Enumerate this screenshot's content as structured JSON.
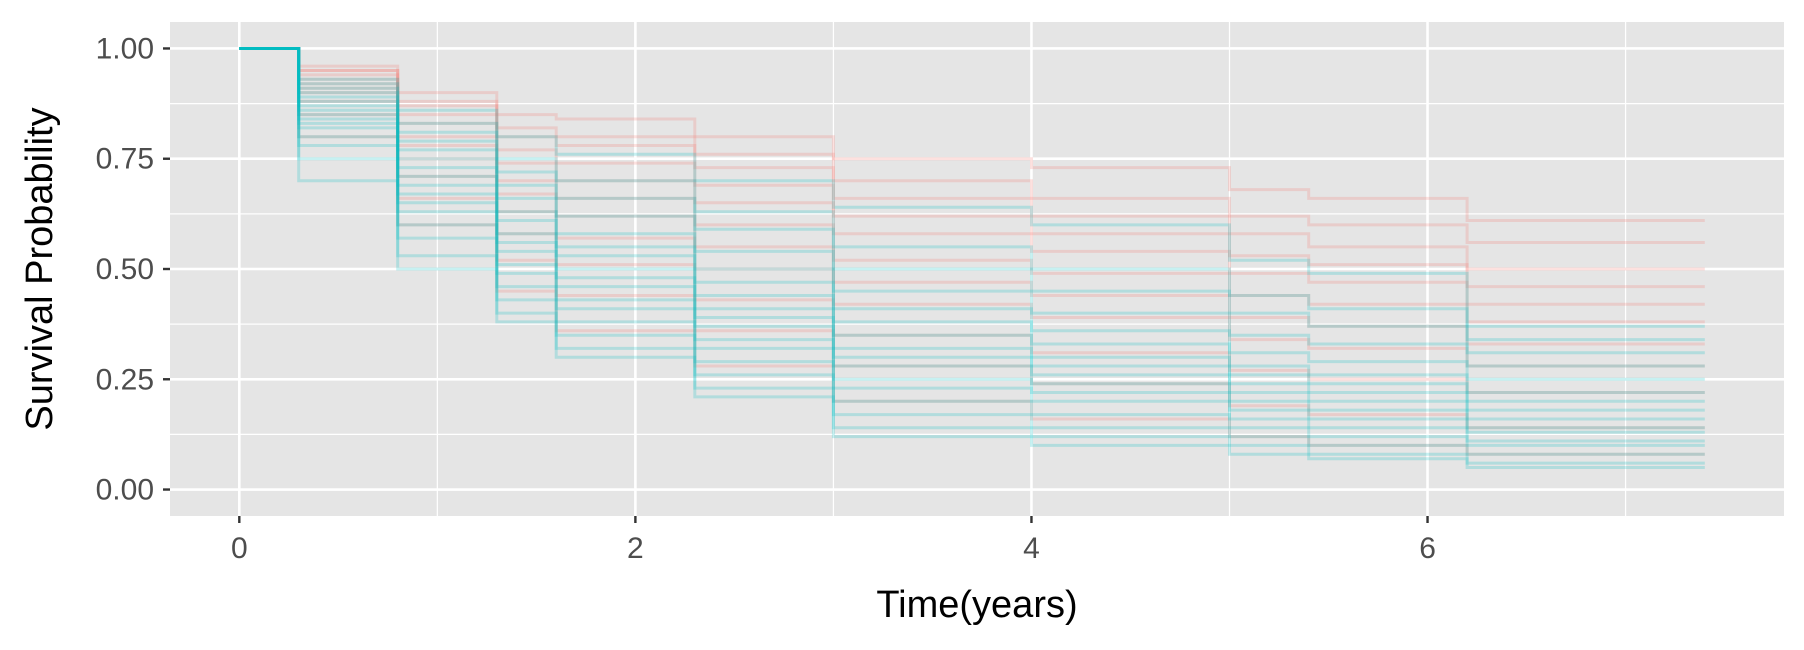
{
  "chart_data": {
    "type": "line",
    "step": true,
    "title": "",
    "xlabel": "Time(years)",
    "ylabel": "Survival Probability",
    "xlim": [
      -0.35,
      7.8
    ],
    "ylim": [
      -0.06,
      1.06
    ],
    "x_ticks": [
      0,
      2,
      4,
      6
    ],
    "x_tick_labels": [
      "0",
      "2",
      "4",
      "6"
    ],
    "y_ticks": [
      0,
      0.25,
      0.5,
      0.75,
      1.0
    ],
    "y_tick_labels": [
      "0.00",
      "0.25",
      "0.50",
      "0.75",
      "1.00"
    ],
    "grid": true,
    "legend": "none",
    "panel_background": "#e5e5e5",
    "grid_color": "#ffffff",
    "group_colors": [
      "#f8766d",
      "#00bfc4"
    ],
    "line_opacity": 0.22,
    "x_max": 7.4,
    "series": [
      {
        "group": 0,
        "x": [
          0,
          0.3,
          0.8,
          1.3,
          1.6,
          2.3,
          3.0,
          4.0,
          5.0,
          5.4,
          6.2,
          7.4
        ],
        "y": [
          1,
          0.96,
          0.9,
          0.85,
          0.84,
          0.8,
          0.75,
          0.73,
          0.68,
          0.66,
          0.61,
          0.61
        ]
      },
      {
        "group": 0,
        "x": [
          0,
          0.3,
          0.8,
          1.3,
          1.6,
          2.3,
          3.0,
          4.0,
          5.0,
          5.4,
          6.2,
          7.4
        ],
        "y": [
          1,
          0.95,
          0.88,
          0.82,
          0.8,
          0.76,
          0.7,
          0.66,
          0.62,
          0.6,
          0.56,
          0.56
        ]
      },
      {
        "group": 0,
        "x": [
          0,
          0.3,
          0.8,
          1.3,
          1.6,
          2.3,
          3.0,
          4.0,
          5.0,
          5.4,
          6.2,
          7.4
        ],
        "y": [
          1,
          0.95,
          0.87,
          0.8,
          0.78,
          0.73,
          0.66,
          0.62,
          0.58,
          0.55,
          0.5,
          0.5
        ]
      },
      {
        "group": 0,
        "x": [
          0,
          0.3,
          0.8,
          1.3,
          1.6,
          2.3,
          3.0,
          4.0,
          5.0,
          5.4,
          6.2,
          7.4
        ],
        "y": [
          1,
          0.94,
          0.85,
          0.77,
          0.74,
          0.69,
          0.62,
          0.58,
          0.53,
          0.51,
          0.46,
          0.46
        ]
      },
      {
        "group": 0,
        "x": [
          0,
          0.3,
          0.8,
          1.3,
          1.6,
          2.3,
          3.0,
          4.0,
          5.0,
          5.4,
          6.2,
          7.4
        ],
        "y": [
          1,
          0.93,
          0.83,
          0.74,
          0.7,
          0.65,
          0.58,
          0.54,
          0.49,
          0.47,
          0.42,
          0.42
        ]
      },
      {
        "group": 0,
        "x": [
          0,
          0.3,
          0.8,
          1.3,
          1.6,
          2.3,
          3.0,
          4.0,
          5.0,
          5.4,
          6.2,
          7.4
        ],
        "y": [
          1,
          0.92,
          0.8,
          0.7,
          0.66,
          0.6,
          0.52,
          0.49,
          0.44,
          0.42,
          0.38,
          0.38
        ]
      },
      {
        "group": 0,
        "x": [
          0,
          0.3,
          0.8,
          1.3,
          1.6,
          2.3,
          3.0,
          4.0,
          5.0,
          5.4,
          6.2,
          7.4
        ],
        "y": [
          1,
          0.91,
          0.78,
          0.67,
          0.62,
          0.55,
          0.47,
          0.44,
          0.39,
          0.37,
          0.33,
          0.33
        ]
      },
      {
        "group": 0,
        "x": [
          0,
          0.3,
          0.8,
          1.3,
          1.6,
          2.3,
          3.0,
          4.0,
          5.0,
          5.4,
          6.2,
          7.4
        ],
        "y": [
          1,
          0.9,
          0.75,
          0.63,
          0.57,
          0.5,
          0.42,
          0.39,
          0.34,
          0.32,
          0.28,
          0.28
        ]
      },
      {
        "group": 0,
        "x": [
          0,
          0.3,
          0.8,
          1.3,
          1.6,
          2.3,
          3.0,
          4.0,
          5.0,
          5.4,
          6.2,
          7.4
        ],
        "y": [
          1,
          0.88,
          0.71,
          0.58,
          0.51,
          0.43,
          0.35,
          0.31,
          0.27,
          0.25,
          0.22,
          0.22
        ]
      },
      {
        "group": 0,
        "x": [
          0,
          0.3,
          0.8,
          1.3,
          1.6,
          2.3,
          3.0,
          4.0,
          5.0,
          5.4,
          6.2,
          7.4
        ],
        "y": [
          1,
          0.85,
          0.66,
          0.52,
          0.44,
          0.36,
          0.28,
          0.24,
          0.19,
          0.17,
          0.14,
          0.14
        ]
      },
      {
        "group": 0,
        "x": [
          0,
          0.3,
          0.8,
          1.3,
          1.6,
          2.3,
          3.0,
          4.0,
          5.0,
          5.4,
          6.2,
          7.4
        ],
        "y": [
          1,
          0.8,
          0.6,
          0.45,
          0.36,
          0.28,
          0.2,
          0.16,
          0.12,
          0.1,
          0.08,
          0.08
        ]
      },
      {
        "group": 1,
        "x": [
          0,
          0.3,
          0.8,
          1.3,
          1.6,
          2.3,
          3.0,
          4.0,
          5.0,
          5.4,
          6.2,
          7.4
        ],
        "y": [
          1,
          0.93,
          0.86,
          0.8,
          0.76,
          0.7,
          0.64,
          0.6,
          0.52,
          0.49,
          0.37,
          0.37
        ]
      },
      {
        "group": 1,
        "x": [
          0,
          0.3,
          0.8,
          1.3,
          1.6,
          2.3,
          3.0,
          4.0,
          5.0,
          5.4,
          6.2,
          7.4
        ],
        "y": [
          1,
          0.92,
          0.83,
          0.75,
          0.7,
          0.63,
          0.55,
          0.5,
          0.44,
          0.41,
          0.34,
          0.34
        ]
      },
      {
        "group": 1,
        "x": [
          0,
          0.3,
          0.8,
          1.3,
          1.6,
          2.3,
          3.0,
          4.0,
          5.0,
          5.4,
          6.2,
          7.4
        ],
        "y": [
          1,
          0.91,
          0.81,
          0.72,
          0.66,
          0.59,
          0.5,
          0.45,
          0.4,
          0.37,
          0.31,
          0.31
        ]
      },
      {
        "group": 1,
        "x": [
          0,
          0.3,
          0.8,
          1.3,
          1.6,
          2.3,
          3.0,
          4.0,
          5.0,
          5.4,
          6.2,
          7.4
        ],
        "y": [
          1,
          0.9,
          0.79,
          0.69,
          0.62,
          0.54,
          0.45,
          0.4,
          0.35,
          0.33,
          0.28,
          0.28
        ]
      },
      {
        "group": 1,
        "x": [
          0,
          0.3,
          0.8,
          1.3,
          1.6,
          2.3,
          3.0,
          4.0,
          5.0,
          5.4,
          6.2,
          7.4
        ],
        "y": [
          1,
          0.89,
          0.77,
          0.66,
          0.58,
          0.5,
          0.41,
          0.36,
          0.31,
          0.29,
          0.25,
          0.25
        ]
      },
      {
        "group": 1,
        "x": [
          0,
          0.3,
          0.8,
          1.3,
          1.6,
          2.3,
          3.0,
          4.0,
          5.0,
          5.4,
          6.2,
          7.4
        ],
        "y": [
          1,
          0.88,
          0.75,
          0.63,
          0.55,
          0.47,
          0.38,
          0.33,
          0.28,
          0.26,
          0.22,
          0.22
        ]
      },
      {
        "group": 1,
        "x": [
          0,
          0.3,
          0.8,
          1.3,
          1.6,
          2.3,
          3.0,
          4.0,
          5.0,
          5.4,
          6.2,
          7.4
        ],
        "y": [
          1,
          0.87,
          0.73,
          0.61,
          0.53,
          0.44,
          0.35,
          0.3,
          0.26,
          0.24,
          0.2,
          0.2
        ]
      },
      {
        "group": 1,
        "x": [
          0,
          0.3,
          0.8,
          1.3,
          1.6,
          2.3,
          3.0,
          4.0,
          5.0,
          5.4,
          6.2,
          7.4
        ],
        "y": [
          1,
          0.86,
          0.71,
          0.58,
          0.5,
          0.41,
          0.32,
          0.28,
          0.24,
          0.22,
          0.18,
          0.18
        ]
      },
      {
        "group": 1,
        "x": [
          0,
          0.3,
          0.8,
          1.3,
          1.6,
          2.3,
          3.0,
          4.0,
          5.0,
          5.4,
          6.2,
          7.4
        ],
        "y": [
          1,
          0.85,
          0.69,
          0.56,
          0.48,
          0.39,
          0.3,
          0.26,
          0.22,
          0.2,
          0.16,
          0.16
        ]
      },
      {
        "group": 1,
        "x": [
          0,
          0.3,
          0.8,
          1.3,
          1.6,
          2.3,
          3.0,
          4.0,
          5.0,
          5.4,
          6.2,
          7.4
        ],
        "y": [
          1,
          0.84,
          0.67,
          0.54,
          0.46,
          0.37,
          0.28,
          0.24,
          0.2,
          0.18,
          0.14,
          0.14
        ]
      },
      {
        "group": 1,
        "x": [
          0,
          0.3,
          0.8,
          1.3,
          1.6,
          2.3,
          3.0,
          4.0,
          5.0,
          5.4,
          6.2,
          7.4
        ],
        "y": [
          1,
          0.83,
          0.65,
          0.51,
          0.43,
          0.34,
          0.25,
          0.22,
          0.18,
          0.16,
          0.13,
          0.13
        ]
      },
      {
        "group": 1,
        "x": [
          0,
          0.3,
          0.8,
          1.3,
          1.6,
          2.3,
          3.0,
          4.0,
          5.0,
          5.4,
          6.2,
          7.4
        ],
        "y": [
          1,
          0.82,
          0.63,
          0.49,
          0.41,
          0.32,
          0.23,
          0.2,
          0.16,
          0.14,
          0.11,
          0.11
        ]
      },
      {
        "group": 1,
        "x": [
          0,
          0.3,
          0.8,
          1.3,
          1.6,
          2.3,
          3.0,
          4.0,
          5.0,
          5.4,
          6.2,
          7.4
        ],
        "y": [
          1,
          0.8,
          0.6,
          0.46,
          0.38,
          0.29,
          0.2,
          0.17,
          0.14,
          0.12,
          0.1,
          0.1
        ]
      },
      {
        "group": 1,
        "x": [
          0,
          0.3,
          0.8,
          1.3,
          1.6,
          2.3,
          3.0,
          4.0,
          5.0,
          5.4,
          6.2,
          7.4
        ],
        "y": [
          1,
          0.78,
          0.57,
          0.43,
          0.35,
          0.26,
          0.17,
          0.14,
          0.12,
          0.1,
          0.08,
          0.08
        ]
      },
      {
        "group": 1,
        "x": [
          0,
          0.3,
          0.8,
          1.3,
          1.6,
          2.3,
          3.0,
          4.0,
          5.0,
          5.4,
          6.2,
          7.4
        ],
        "y": [
          1,
          0.75,
          0.53,
          0.4,
          0.32,
          0.23,
          0.14,
          0.12,
          0.1,
          0.08,
          0.06,
          0.06
        ]
      },
      {
        "group": 1,
        "x": [
          0,
          0.3,
          0.8,
          1.3,
          1.6,
          2.3,
          3.0,
          4.0,
          5.0,
          5.4,
          6.2,
          7.4
        ],
        "y": [
          1,
          0.7,
          0.5,
          0.38,
          0.3,
          0.21,
          0.12,
          0.1,
          0.08,
          0.07,
          0.05,
          0.05
        ]
      }
    ]
  }
}
